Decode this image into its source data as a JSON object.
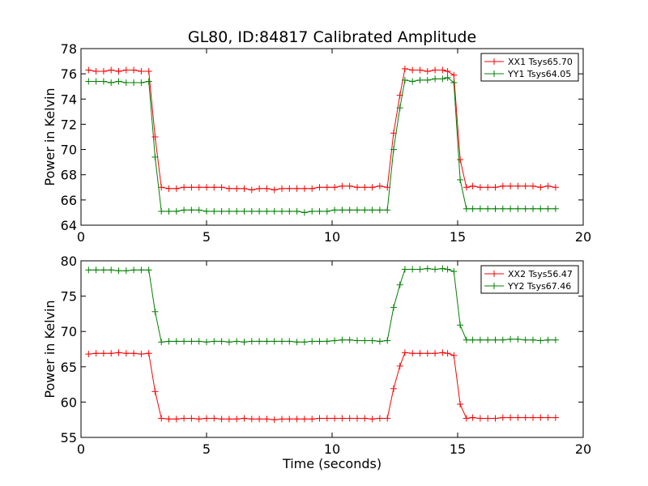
{
  "chart_data": [
    {
      "type": "line",
      "title": "GL80, ID:84817 Calibrated Amplitude",
      "xlabel": "",
      "ylabel": "Power in Kelvin",
      "xlim": [
        0,
        20
      ],
      "ylim": [
        64,
        78
      ],
      "xticks": [
        "0",
        "5",
        "10",
        "15",
        "20"
      ],
      "yticks": [
        "64",
        "66",
        "68",
        "70",
        "72",
        "74",
        "76",
        "78"
      ],
      "grid": false,
      "legend": "top-right",
      "series": [
        {
          "name": "XX1 Tsys65.70",
          "color": "#ff0000",
          "x": [
            0.3,
            0.6,
            0.9,
            1.2,
            1.5,
            1.8,
            2.1,
            2.4,
            2.7,
            2.95,
            3.2,
            3.5,
            3.8,
            4.1,
            4.4,
            4.7,
            5.0,
            5.3,
            5.6,
            5.9,
            6.2,
            6.5,
            6.8,
            7.1,
            7.4,
            7.7,
            8.0,
            8.3,
            8.6,
            8.9,
            9.2,
            9.5,
            9.8,
            10.1,
            10.4,
            10.7,
            11.0,
            11.3,
            11.6,
            11.9,
            12.2,
            12.45,
            12.7,
            12.9,
            13.2,
            13.5,
            13.8,
            14.1,
            14.4,
            14.6,
            14.85,
            15.1,
            15.35,
            15.6,
            15.9,
            16.2,
            16.5,
            16.8,
            17.1,
            17.4,
            17.7,
            18.0,
            18.3,
            18.6,
            18.9
          ],
          "y": [
            76.3,
            76.2,
            76.2,
            76.3,
            76.2,
            76.3,
            76.3,
            76.2,
            76.2,
            71.0,
            67.0,
            66.9,
            66.9,
            67.0,
            67.0,
            67.0,
            67.0,
            67.0,
            67.0,
            66.9,
            66.9,
            66.9,
            66.8,
            66.9,
            66.9,
            66.8,
            66.9,
            66.9,
            66.9,
            66.9,
            66.9,
            67.0,
            67.0,
            67.0,
            67.1,
            67.1,
            67.0,
            67.0,
            67.0,
            67.1,
            67.0,
            71.3,
            74.3,
            76.4,
            76.3,
            76.3,
            76.2,
            76.3,
            76.3,
            76.2,
            75.9,
            69.2,
            67.0,
            67.1,
            67.0,
            67.0,
            67.0,
            67.1,
            67.1,
            67.1,
            67.1,
            67.1,
            67.0,
            67.1,
            67.0
          ]
        },
        {
          "name": "YY1 Tsys64.05",
          "color": "#008000",
          "x": [
            0.3,
            0.6,
            0.9,
            1.2,
            1.5,
            1.8,
            2.1,
            2.4,
            2.7,
            2.95,
            3.2,
            3.5,
            3.8,
            4.1,
            4.4,
            4.7,
            5.0,
            5.3,
            5.6,
            5.9,
            6.2,
            6.5,
            6.8,
            7.1,
            7.4,
            7.7,
            8.0,
            8.3,
            8.6,
            8.9,
            9.2,
            9.5,
            9.8,
            10.1,
            10.4,
            10.7,
            11.0,
            11.3,
            11.6,
            11.9,
            12.2,
            12.45,
            12.7,
            12.9,
            13.2,
            13.5,
            13.8,
            14.1,
            14.4,
            14.6,
            14.85,
            15.1,
            15.35,
            15.6,
            15.9,
            16.2,
            16.5,
            16.8,
            17.1,
            17.4,
            17.7,
            18.0,
            18.3,
            18.6,
            18.9
          ],
          "y": [
            75.4,
            75.4,
            75.4,
            75.3,
            75.4,
            75.3,
            75.3,
            75.3,
            75.4,
            69.4,
            65.1,
            65.1,
            65.1,
            65.2,
            65.2,
            65.2,
            65.1,
            65.1,
            65.1,
            65.1,
            65.1,
            65.1,
            65.1,
            65.1,
            65.1,
            65.1,
            65.1,
            65.1,
            65.1,
            65.0,
            65.1,
            65.1,
            65.1,
            65.2,
            65.2,
            65.2,
            65.2,
            65.2,
            65.2,
            65.2,
            65.2,
            70.0,
            73.3,
            75.5,
            75.4,
            75.5,
            75.5,
            75.6,
            75.6,
            75.7,
            75.3,
            67.6,
            65.3,
            65.3,
            65.3,
            65.3,
            65.3,
            65.3,
            65.3,
            65.3,
            65.3,
            65.3,
            65.3,
            65.3,
            65.3
          ]
        }
      ]
    },
    {
      "type": "line",
      "title": "",
      "xlabel": "Time (seconds)",
      "ylabel": "Power in Kelvin",
      "xlim": [
        0,
        20
      ],
      "ylim": [
        55,
        80
      ],
      "xticks": [
        "0",
        "5",
        "10",
        "15",
        "20"
      ],
      "yticks": [
        "55",
        "60",
        "65",
        "70",
        "75",
        "80"
      ],
      "grid": false,
      "legend": "top-right",
      "series": [
        {
          "name": "XX2 Tsys56.47",
          "color": "#ff0000",
          "x": [
            0.3,
            0.6,
            0.9,
            1.2,
            1.5,
            1.8,
            2.1,
            2.4,
            2.7,
            2.95,
            3.2,
            3.5,
            3.8,
            4.1,
            4.4,
            4.7,
            5.0,
            5.3,
            5.6,
            5.9,
            6.2,
            6.5,
            6.8,
            7.1,
            7.4,
            7.7,
            8.0,
            8.3,
            8.6,
            8.9,
            9.2,
            9.5,
            9.8,
            10.1,
            10.4,
            10.7,
            11.0,
            11.3,
            11.6,
            11.9,
            12.2,
            12.45,
            12.7,
            12.9,
            13.2,
            13.5,
            13.8,
            14.1,
            14.4,
            14.6,
            14.85,
            15.1,
            15.35,
            15.6,
            15.9,
            16.2,
            16.5,
            16.8,
            17.1,
            17.4,
            17.7,
            18.0,
            18.3,
            18.6,
            18.9
          ],
          "y": [
            66.8,
            66.9,
            66.9,
            66.9,
            67.0,
            66.9,
            66.9,
            66.8,
            66.9,
            61.5,
            57.7,
            57.6,
            57.6,
            57.7,
            57.7,
            57.6,
            57.7,
            57.7,
            57.6,
            57.6,
            57.6,
            57.7,
            57.6,
            57.6,
            57.6,
            57.5,
            57.6,
            57.6,
            57.6,
            57.6,
            57.6,
            57.7,
            57.7,
            57.7,
            57.7,
            57.7,
            57.7,
            57.7,
            57.6,
            57.7,
            57.7,
            61.9,
            65.1,
            67.0,
            66.9,
            66.9,
            66.9,
            66.9,
            67.0,
            66.9,
            66.6,
            59.7,
            57.7,
            57.8,
            57.7,
            57.7,
            57.7,
            57.8,
            57.8,
            57.8,
            57.8,
            57.8,
            57.8,
            57.8,
            57.8
          ]
        },
        {
          "name": "YY2 Tsys67.46",
          "color": "#008000",
          "x": [
            0.3,
            0.6,
            0.9,
            1.2,
            1.5,
            1.8,
            2.1,
            2.4,
            2.7,
            2.95,
            3.2,
            3.5,
            3.8,
            4.1,
            4.4,
            4.7,
            5.0,
            5.3,
            5.6,
            5.9,
            6.2,
            6.5,
            6.8,
            7.1,
            7.4,
            7.7,
            8.0,
            8.3,
            8.6,
            8.9,
            9.2,
            9.5,
            9.8,
            10.1,
            10.4,
            10.7,
            11.0,
            11.3,
            11.6,
            11.9,
            12.2,
            12.45,
            12.7,
            12.9,
            13.2,
            13.5,
            13.8,
            14.1,
            14.4,
            14.6,
            14.85,
            15.1,
            15.35,
            15.6,
            15.9,
            16.2,
            16.5,
            16.8,
            17.1,
            17.4,
            17.7,
            18.0,
            18.3,
            18.6,
            18.9
          ],
          "y": [
            78.7,
            78.7,
            78.7,
            78.7,
            78.6,
            78.6,
            78.7,
            78.7,
            78.7,
            72.8,
            68.5,
            68.6,
            68.6,
            68.6,
            68.6,
            68.6,
            68.5,
            68.6,
            68.6,
            68.5,
            68.6,
            68.5,
            68.6,
            68.6,
            68.6,
            68.6,
            68.6,
            68.6,
            68.5,
            68.5,
            68.6,
            68.6,
            68.6,
            68.7,
            68.8,
            68.8,
            68.7,
            68.7,
            68.7,
            68.6,
            68.7,
            73.4,
            76.6,
            78.8,
            78.8,
            78.8,
            78.9,
            78.8,
            78.9,
            78.8,
            78.5,
            70.9,
            68.8,
            68.8,
            68.8,
            68.8,
            68.8,
            68.8,
            68.9,
            68.9,
            68.8,
            68.8,
            68.7,
            68.8,
            68.8
          ]
        }
      ]
    }
  ]
}
